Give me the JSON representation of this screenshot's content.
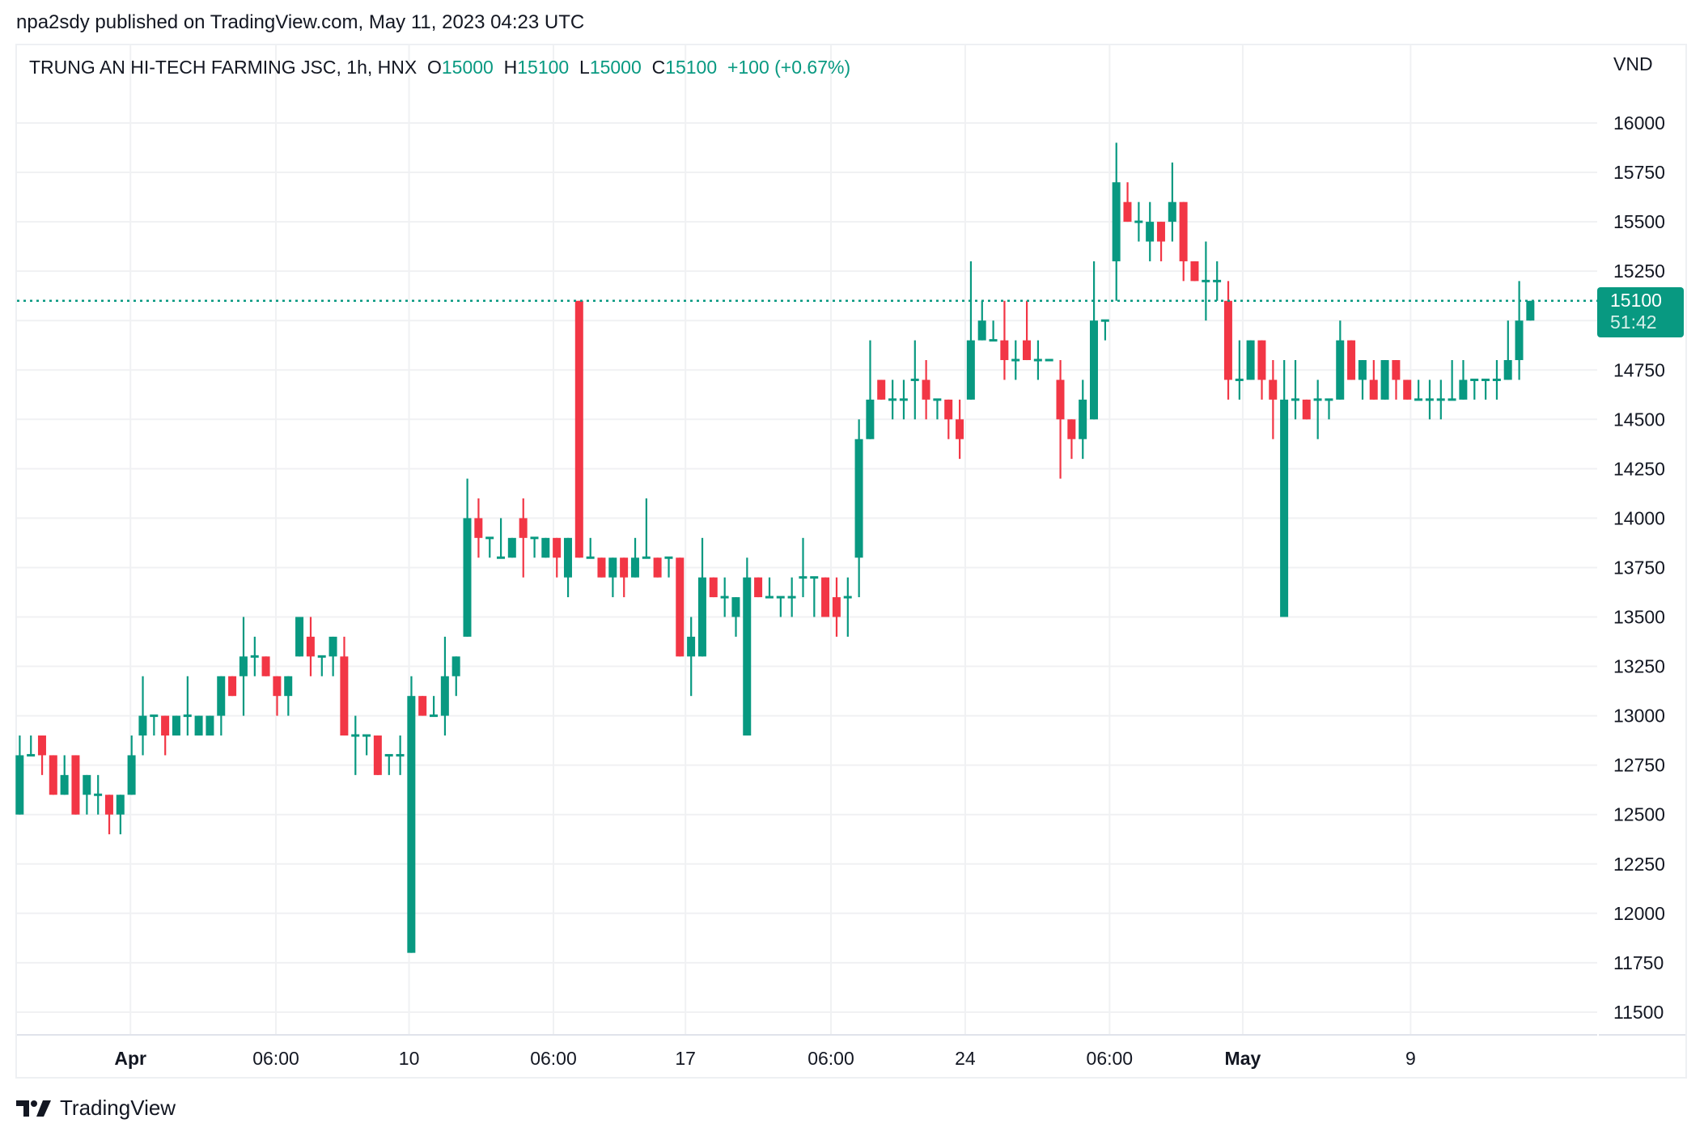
{
  "publisher": "npa2sdy published on TradingView.com, May 11, 2023 04:23 UTC",
  "legend": {
    "symbol": "TRUNG AN HI-TECH FARMING JSC, 1h, HNX",
    "o_label": "O",
    "o_value": "15000",
    "h_label": "H",
    "h_value": "15100",
    "l_label": "L",
    "l_value": "15000",
    "c_label": "C",
    "c_value": "15100",
    "change": "+100 (+0.67%)"
  },
  "currency": "VND",
  "last_price": {
    "value": "15100",
    "countdown": "51:42"
  },
  "brand": "TradingView",
  "colors": {
    "up": "#089981",
    "down": "#f23645",
    "grid": "#f0f1f3",
    "text": "#131722"
  },
  "chart_data": {
    "type": "candlestick",
    "title": "TRUNG AN HI-TECH FARMING JSC, 1h, HNX",
    "ylabel": "VND",
    "ylim": [
      11450,
      16100
    ],
    "grid": true,
    "y_ticks": [
      16000,
      15750,
      15500,
      15250,
      15000,
      14750,
      14500,
      14250,
      14000,
      13750,
      13500,
      13250,
      13000,
      12750,
      12500,
      12250,
      12000,
      11750,
      11500
    ],
    "x_ticks": [
      {
        "label": "Apr",
        "index": 9.9,
        "bold": true
      },
      {
        "label": "06:00",
        "index": 22.9,
        "bold": false
      },
      {
        "label": "10",
        "index": 34.8,
        "bold": false
      },
      {
        "label": "06:00",
        "index": 47.7,
        "bold": false
      },
      {
        "label": "17",
        "index": 59.5,
        "bold": false
      },
      {
        "label": "06:00",
        "index": 72.5,
        "bold": false
      },
      {
        "label": "24",
        "index": 84.5,
        "bold": false
      },
      {
        "label": "06:00",
        "index": 97.4,
        "bold": false
      },
      {
        "label": "May",
        "index": 109.3,
        "bold": true
      },
      {
        "label": "9",
        "index": 124.3,
        "bold": false
      }
    ],
    "last_price_line": 15100,
    "candles": [
      [
        12500,
        12900,
        12500,
        12800
      ],
      [
        12800,
        12900,
        12800,
        12800
      ],
      [
        12900,
        12900,
        12700,
        12800
      ],
      [
        12800,
        12800,
        12600,
        12600
      ],
      [
        12600,
        12800,
        12600,
        12700
      ],
      [
        12800,
        12800,
        12500,
        12500
      ],
      [
        12600,
        12700,
        12500,
        12700
      ],
      [
        12600,
        12700,
        12500,
        12600
      ],
      [
        12600,
        12600,
        12400,
        12500
      ],
      [
        12500,
        12600,
        12400,
        12600
      ],
      [
        12600,
        12900,
        12600,
        12800
      ],
      [
        12900,
        13200,
        12800,
        13000
      ],
      [
        13000,
        13000,
        12900,
        13000
      ],
      [
        13000,
        13000,
        12800,
        12900
      ],
      [
        12900,
        13000,
        12900,
        13000
      ],
      [
        13000,
        13200,
        12900,
        13000
      ],
      [
        12900,
        13000,
        12900,
        13000
      ],
      [
        12900,
        13000,
        12900,
        13000
      ],
      [
        13000,
        13200,
        12900,
        13200
      ],
      [
        13200,
        13200,
        13100,
        13100
      ],
      [
        13200,
        13500,
        13000,
        13300
      ],
      [
        13300,
        13400,
        13200,
        13300
      ],
      [
        13300,
        13300,
        13200,
        13200
      ],
      [
        13200,
        13200,
        13000,
        13100
      ],
      [
        13100,
        13200,
        13000,
        13200
      ],
      [
        13300,
        13500,
        13300,
        13500
      ],
      [
        13400,
        13500,
        13200,
        13300
      ],
      [
        13300,
        13300,
        13200,
        13300
      ],
      [
        13300,
        13400,
        13200,
        13400
      ],
      [
        13300,
        13400,
        12900,
        12900
      ],
      [
        12900,
        13000,
        12700,
        12900
      ],
      [
        12900,
        12900,
        12800,
        12900
      ],
      [
        12900,
        12900,
        12700,
        12700
      ],
      [
        12800,
        12800,
        12700,
        12800
      ],
      [
        12800,
        12900,
        12700,
        12800
      ],
      [
        11800,
        13200,
        11800,
        13100
      ],
      [
        13100,
        13100,
        13000,
        13000
      ],
      [
        13000,
        13100,
        13000,
        13000
      ],
      [
        13000,
        13400,
        12900,
        13200
      ],
      [
        13200,
        13300,
        13100,
        13300
      ],
      [
        13400,
        14200,
        13400,
        14000
      ],
      [
        14000,
        14100,
        13800,
        13900
      ],
      [
        13900,
        13900,
        13800,
        13900
      ],
      [
        13800,
        14000,
        13800,
        13800
      ],
      [
        13800,
        13900,
        13800,
        13900
      ],
      [
        14000,
        14100,
        13700,
        13900
      ],
      [
        13900,
        13900,
        13800,
        13900
      ],
      [
        13800,
        13900,
        13800,
        13900
      ],
      [
        13900,
        13900,
        13700,
        13800
      ],
      [
        13700,
        13900,
        13600,
        13900
      ],
      [
        15100,
        15100,
        13800,
        13800
      ],
      [
        13800,
        13900,
        13800,
        13800
      ],
      [
        13800,
        13800,
        13700,
        13700
      ],
      [
        13700,
        13800,
        13600,
        13800
      ],
      [
        13800,
        13800,
        13600,
        13700
      ],
      [
        13700,
        13900,
        13700,
        13800
      ],
      [
        13800,
        14100,
        13800,
        13800
      ],
      [
        13800,
        13800,
        13700,
        13700
      ],
      [
        13800,
        13800,
        13700,
        13800
      ],
      [
        13800,
        13800,
        13300,
        13300
      ],
      [
        13300,
        13500,
        13100,
        13400
      ],
      [
        13300,
        13900,
        13300,
        13700
      ],
      [
        13700,
        13700,
        13600,
        13600
      ],
      [
        13600,
        13700,
        13500,
        13600
      ],
      [
        13500,
        13600,
        13400,
        13600
      ],
      [
        12900,
        13800,
        12900,
        13700
      ],
      [
        13700,
        13700,
        13600,
        13600
      ],
      [
        13600,
        13700,
        13600,
        13600
      ],
      [
        13600,
        13600,
        13500,
        13600
      ],
      [
        13600,
        13700,
        13500,
        13600
      ],
      [
        13700,
        13900,
        13600,
        13700
      ],
      [
        13700,
        13700,
        13500,
        13700
      ],
      [
        13700,
        13700,
        13500,
        13500
      ],
      [
        13600,
        13700,
        13400,
        13500
      ],
      [
        13600,
        13700,
        13400,
        13600
      ],
      [
        13800,
        14500,
        13600,
        14400
      ],
      [
        14400,
        14900,
        14400,
        14600
      ],
      [
        14700,
        14700,
        14600,
        14600
      ],
      [
        14600,
        14700,
        14500,
        14600
      ],
      [
        14600,
        14700,
        14500,
        14600
      ],
      [
        14700,
        14900,
        14500,
        14700
      ],
      [
        14700,
        14800,
        14500,
        14600
      ],
      [
        14600,
        14600,
        14500,
        14600
      ],
      [
        14600,
        14600,
        14400,
        14500
      ],
      [
        14500,
        14600,
        14300,
        14400
      ],
      [
        14600,
        15300,
        14600,
        14900
      ],
      [
        14900,
        15100,
        14900,
        15000
      ],
      [
        14900,
        15000,
        14900,
        14900
      ],
      [
        14900,
        15100,
        14700,
        14800
      ],
      [
        14800,
        14900,
        14700,
        14800
      ],
      [
        14900,
        15100,
        14800,
        14800
      ],
      [
        14800,
        14900,
        14700,
        14800
      ],
      [
        14800,
        14800,
        14800,
        14800
      ],
      [
        14700,
        14800,
        14200,
        14500
      ],
      [
        14500,
        14500,
        14300,
        14400
      ],
      [
        14400,
        14700,
        14300,
        14600
      ],
      [
        14500,
        15300,
        14500,
        15000
      ],
      [
        15000,
        15000,
        14900,
        15000
      ],
      [
        15300,
        15900,
        15100,
        15700
      ],
      [
        15600,
        15700,
        15500,
        15500
      ],
      [
        15500,
        15600,
        15400,
        15500
      ],
      [
        15400,
        15600,
        15300,
        15500
      ],
      [
        15500,
        15500,
        15300,
        15400
      ],
      [
        15500,
        15800,
        15400,
        15600
      ],
      [
        15600,
        15600,
        15200,
        15300
      ],
      [
        15300,
        15300,
        15200,
        15200
      ],
      [
        15200,
        15400,
        15000,
        15200
      ],
      [
        15200,
        15300,
        15100,
        15200
      ],
      [
        15100,
        15200,
        14600,
        14700
      ],
      [
        14700,
        14900,
        14600,
        14700
      ],
      [
        14700,
        14900,
        14700,
        14900
      ],
      [
        14900,
        14900,
        14600,
        14700
      ],
      [
        14700,
        14800,
        14400,
        14600
      ],
      [
        13500,
        14800,
        13500,
        14600
      ],
      [
        14600,
        14800,
        14500,
        14600
      ],
      [
        14600,
        14600,
        14500,
        14500
      ],
      [
        14600,
        14700,
        14400,
        14600
      ],
      [
        14600,
        14600,
        14500,
        14600
      ],
      [
        14600,
        15000,
        14600,
        14900
      ],
      [
        14900,
        14900,
        14700,
        14700
      ],
      [
        14700,
        14800,
        14600,
        14800
      ],
      [
        14700,
        14800,
        14600,
        14600
      ],
      [
        14600,
        14800,
        14600,
        14800
      ],
      [
        14800,
        14800,
        14600,
        14700
      ],
      [
        14700,
        14700,
        14600,
        14600
      ],
      [
        14600,
        14700,
        14600,
        14600
      ],
      [
        14600,
        14700,
        14500,
        14600
      ],
      [
        14600,
        14700,
        14500,
        14600
      ],
      [
        14600,
        14800,
        14600,
        14600
      ],
      [
        14600,
        14800,
        14600,
        14700
      ],
      [
        14700,
        14700,
        14600,
        14700
      ],
      [
        14700,
        14700,
        14600,
        14700
      ],
      [
        14700,
        14800,
        14600,
        14700
      ],
      [
        14700,
        15000,
        14700,
        14800
      ],
      [
        14800,
        15200,
        14700,
        15000
      ],
      [
        15000,
        15100,
        15000,
        15100
      ]
    ]
  }
}
